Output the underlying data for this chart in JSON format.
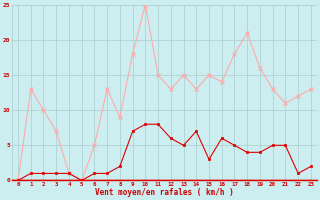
{
  "x": [
    0,
    1,
    2,
    3,
    4,
    5,
    6,
    7,
    8,
    9,
    10,
    11,
    12,
    13,
    14,
    15,
    16,
    17,
    18,
    19,
    20,
    21,
    22,
    23
  ],
  "wind_avg": [
    0,
    1,
    1,
    1,
    1,
    0,
    1,
    1,
    2,
    7,
    8,
    8,
    6,
    5,
    7,
    3,
    6,
    5,
    4,
    4,
    5,
    5,
    1,
    2
  ],
  "wind_gust": [
    0,
    13,
    10,
    7,
    1,
    0,
    5,
    13,
    9,
    18,
    25,
    15,
    13,
    15,
    13,
    15,
    14,
    18,
    21,
    16,
    13,
    11,
    12,
    13
  ],
  "avg_color": "#dd0000",
  "gust_color": "#ffaaaa",
  "bg_color": "#cceef0",
  "grid_color": "#aacccc",
  "xlabel": "Vent moyen/en rafales ( km/h )",
  "xlabel_color": "#cc0000",
  "tick_color": "#cc0000",
  "ylim": [
    0,
    25
  ],
  "yticks": [
    0,
    5,
    10,
    15,
    20,
    25
  ],
  "xlim_min": -0.5,
  "xlim_max": 23.5
}
